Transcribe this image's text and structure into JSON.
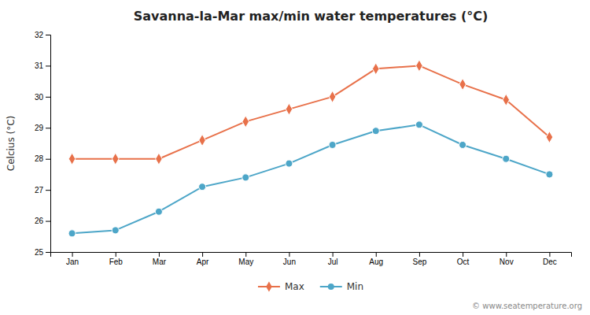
{
  "chart_data": {
    "type": "line",
    "title": "Savanna-la-Mar max/min water temperatures (°C)",
    "y_label": "Celcius (°C)",
    "categories": [
      "Jan",
      "Feb",
      "Mar",
      "Apr",
      "May",
      "Jun",
      "Jul",
      "Aug",
      "Sep",
      "Oct",
      "Nov",
      "Dec"
    ],
    "series": [
      {
        "name": "Max",
        "color": "#e8714a",
        "marker": "diamond",
        "values": [
          28.0,
          28.0,
          28.0,
          28.6,
          29.2,
          29.6,
          30.0,
          30.9,
          31.0,
          30.4,
          29.9,
          28.7
        ]
      },
      {
        "name": "Min",
        "color": "#4da6c8",
        "marker": "circle",
        "values": [
          25.6,
          25.7,
          26.3,
          27.1,
          27.4,
          27.85,
          28.45,
          28.9,
          29.1,
          28.45,
          28.0,
          27.5
        ]
      }
    ],
    "ylim": [
      25,
      32
    ],
    "yticks": [
      25,
      26,
      27,
      28,
      29,
      30,
      31,
      32
    ],
    "grid": false,
    "legend": "bottom",
    "annotations": [
      "© www.seatemperature.org"
    ]
  }
}
